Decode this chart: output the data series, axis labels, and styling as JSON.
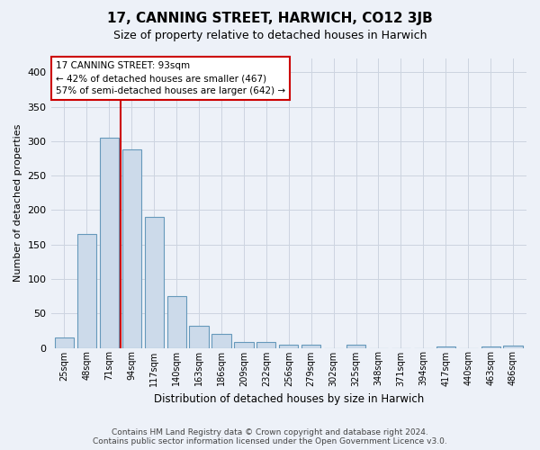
{
  "title": "17, CANNING STREET, HARWICH, CO12 3JB",
  "subtitle": "Size of property relative to detached houses in Harwich",
  "xlabel": "Distribution of detached houses by size in Harwich",
  "ylabel": "Number of detached properties",
  "footer_line1": "Contains HM Land Registry data © Crown copyright and database right 2024.",
  "footer_line2": "Contains public sector information licensed under the Open Government Licence v3.0.",
  "categories": [
    "25sqm",
    "48sqm",
    "71sqm",
    "94sqm",
    "117sqm",
    "140sqm",
    "163sqm",
    "186sqm",
    "209sqm",
    "232sqm",
    "256sqm",
    "279sqm",
    "302sqm",
    "325sqm",
    "348sqm",
    "371sqm",
    "394sqm",
    "417sqm",
    "440sqm",
    "463sqm",
    "486sqm"
  ],
  "values": [
    15,
    165,
    305,
    288,
    190,
    75,
    32,
    20,
    8,
    8,
    5,
    5,
    0,
    4,
    0,
    0,
    0,
    2,
    0,
    2,
    3
  ],
  "bar_color": "#ccdaea",
  "bar_edge_color": "#6699bb",
  "grid_color": "#ccd4e0",
  "bg_color": "#edf1f8",
  "vline_color": "#cc0000",
  "vline_pos": 2.5,
  "annotation_text_line1": "17 CANNING STREET: 93sqm",
  "annotation_text_line2": "← 42% of detached houses are smaller (467)",
  "annotation_text_line3": "57% of semi-detached houses are larger (642) →",
  "annotation_box_color": "#ffffff",
  "annotation_box_edge": "#cc0000",
  "ylim": [
    0,
    420
  ],
  "yticks": [
    0,
    50,
    100,
    150,
    200,
    250,
    300,
    350,
    400
  ]
}
